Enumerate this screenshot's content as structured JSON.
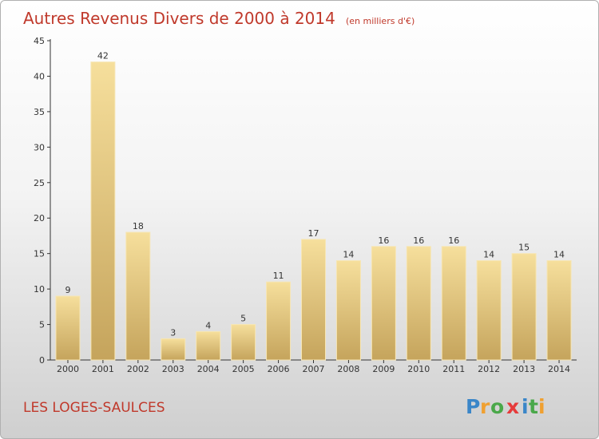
{
  "chart_data": {
    "type": "bar",
    "title": "Autres Revenus Divers de 2000 à 2014",
    "unit": "(en milliers d'€)",
    "categories": [
      "2000",
      "2001",
      "2002",
      "2003",
      "2004",
      "2005",
      "2006",
      "2007",
      "2008",
      "2009",
      "2010",
      "2011",
      "2012",
      "2013",
      "2014"
    ],
    "values": [
      9,
      42,
      18,
      3,
      4,
      5,
      11,
      17,
      14,
      16,
      16,
      16,
      14,
      15,
      14
    ],
    "value_labels": [
      "9",
      "42",
      "18",
      "3",
      "4",
      "5",
      "11",
      "17",
      "14",
      "16",
      "16",
      "16",
      "14",
      "15",
      "14"
    ],
    "ylim": [
      0,
      45
    ],
    "yticks": [
      0,
      5,
      10,
      15,
      20,
      25,
      30,
      35,
      40,
      45
    ],
    "ytick_labels": [
      "0",
      "5",
      "10",
      "15",
      "20",
      "25",
      "30",
      "35",
      "40",
      "45"
    ],
    "xlabel": "",
    "ylabel": "",
    "grid": false,
    "bar_color": "#e9cd86"
  },
  "location": "LES LOGES-SAULCES",
  "brand": "Proxiti"
}
